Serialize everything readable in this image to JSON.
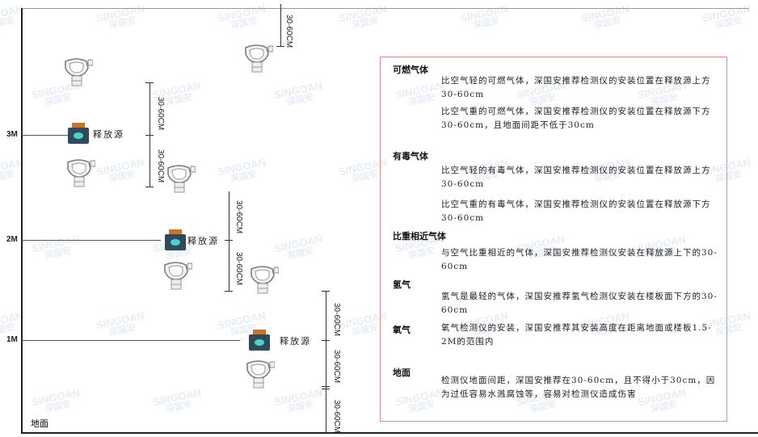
{
  "watermark": {
    "brand": "SINGOAN",
    "cn": "深国安"
  },
  "levels": [
    "3M",
    "2M",
    "1M"
  ],
  "floor_label": "地面",
  "source_label": "释放源",
  "dimension_label": "30-60CM",
  "legend": {
    "sections": [
      {
        "title": "可燃气体",
        "paragraphs": [
          "比空气轻的可燃气体，深国安推荐检测仪的安装位置在释放源上方30-60cm",
          "比空气重的可燃气体，深国安推荐检测仪的安装位置在释放源下方30-60cm，且地面间距不低于30cm"
        ]
      },
      {
        "title": "有毒气体",
        "paragraphs": [
          "比空气轻的有毒气体，深国安推荐检测仪的安装位置在释放源上方30-60cm",
          "比空气重的有毒气体，深国安推荐检测仪的安装位置在释放源下方30-60cm"
        ]
      },
      {
        "title": "比重相近气体",
        "paragraphs": [
          "与空气比重相近的气体，深国安推荐检测仪安装在释放源上下的30-60cm"
        ]
      },
      {
        "title": "氢气",
        "paragraphs": [
          "氢气是最轻的气体，深国安推荐氢气检测仪安装在楼板面下方的30-60cm"
        ]
      },
      {
        "title": "氧气",
        "paragraphs": [
          "氧气检测仪的安装，深国安推荐其安装高度在距离地面或楼板1.5-2M的范围内"
        ]
      },
      {
        "title": "地面",
        "paragraphs": [
          "检测仪地面间距，深国安推荐在30-60cm，且不得小于30cm，因为过低容易水溅腐蚀等，容易对检测仪造成伤害"
        ]
      }
    ]
  },
  "colors": {
    "border": "#e88888",
    "source_body": "#2f4a5a",
    "source_top": "#c8742a",
    "detector": "#888888"
  }
}
